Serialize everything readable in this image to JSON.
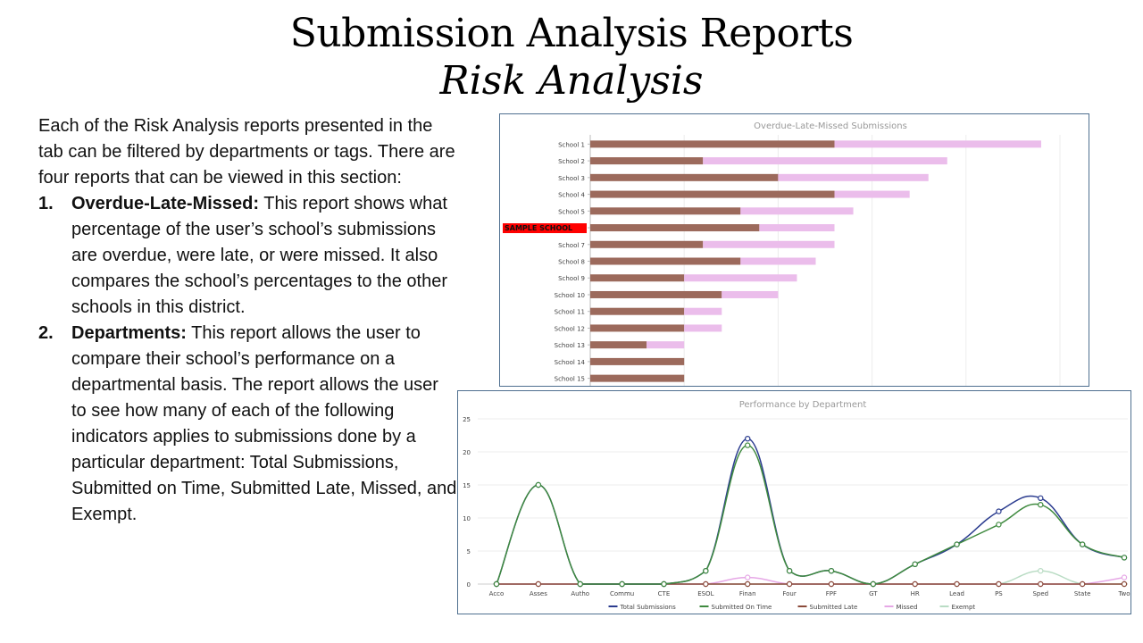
{
  "header": {
    "title": "Submission Analysis Reports",
    "subtitle": "Risk Analysis"
  },
  "description": {
    "intro": "Each of the Risk Analysis reports presented in the tab can be filtered by departments or tags. There are four reports that can be viewed in this section:",
    "items": [
      {
        "number": "1.",
        "term": "Overdue-Late-Missed:",
        "text": " This report shows what percentage of the user’s school’s submissions are overdue, were late, or were missed. It also compares the school’s percentages to the other schools in this district."
      },
      {
        "number": "2.",
        "term": "Departments:",
        "text": " This report allows the user to compare their school’s performance on a departmental basis. The report allows the user to see how many of each of the following indicators applies to submissions done by a particular department: Total Submissions, Submitted on Time, Submitted Late, Missed, and Exempt."
      }
    ]
  },
  "colors": {
    "late_bar": "#9c6a5c",
    "overdue_bar": "#ebbdeb",
    "highlight": "#ff0000",
    "total_line": "#2b3c8f",
    "ontime_line": "#3f8a3f",
    "late_line": "#8b4a3a",
    "missed_line": "#e6a8e6",
    "exempt_line": "#b9dcc4",
    "panel_border": "#4f6f8f"
  },
  "chart_data": [
    {
      "type": "bar",
      "orientation": "horizontal",
      "stacked": true,
      "title": "Overdue-Late-Missed Submissions",
      "categories": [
        "School 1",
        "School 2",
        "School 3",
        "School 4",
        "School 5",
        "SAMPLE SCHOOL",
        "School 7",
        "School 8",
        "School 9",
        "School 10",
        "School 11",
        "School 12",
        "School 13",
        "School 14",
        "School 15"
      ],
      "highlight_category": "SAMPLE SCHOOL",
      "series": [
        {
          "values": [
            13,
            6,
            10,
            13,
            8,
            9,
            6,
            8,
            5,
            7,
            5,
            5,
            3,
            5,
            5
          ]
        },
        {
          "values": [
            11,
            13,
            8,
            4,
            6,
            4,
            7,
            4,
            6,
            3,
            2,
            2,
            2,
            0,
            0
          ]
        }
      ],
      "xlim": [
        0,
        25
      ],
      "grid": true
    },
    {
      "type": "line",
      "title": "Performance by Department",
      "categories": [
        "Acco",
        "Asses",
        "Autho",
        "Commu",
        "CTE",
        "ESOL",
        "Finan",
        "Four",
        "FPF",
        "GT",
        "HR",
        "Lead",
        "PS",
        "Sped",
        "State",
        "Two"
      ],
      "ylim": [
        0,
        25
      ],
      "yticks": [
        0,
        5,
        10,
        15,
        20,
        25
      ],
      "legend_position": "bottom",
      "series": [
        {
          "name": "Total Submissions",
          "values": [
            0,
            15,
            0,
            0,
            0,
            2,
            22,
            2,
            2,
            0,
            3,
            6,
            11,
            13,
            6,
            4
          ]
        },
        {
          "name": "Submitted On Time",
          "values": [
            0,
            15,
            0,
            0,
            0,
            2,
            21,
            2,
            2,
            0,
            3,
            6,
            9,
            12,
            6,
            4
          ]
        },
        {
          "name": "Submitted Late",
          "values": [
            0,
            0,
            0,
            0,
            0,
            0,
            0,
            0,
            0,
            0,
            0,
            0,
            0,
            0,
            0,
            0
          ]
        },
        {
          "name": "Missed",
          "values": [
            0,
            0,
            0,
            0,
            0,
            0,
            1,
            0,
            0,
            0,
            0,
            0,
            0,
            0,
            0,
            1
          ]
        },
        {
          "name": "Exempt",
          "values": [
            0,
            0,
            0,
            0,
            0,
            0,
            0,
            0,
            0,
            0,
            0,
            0,
            0,
            2,
            0,
            0
          ]
        }
      ]
    }
  ]
}
